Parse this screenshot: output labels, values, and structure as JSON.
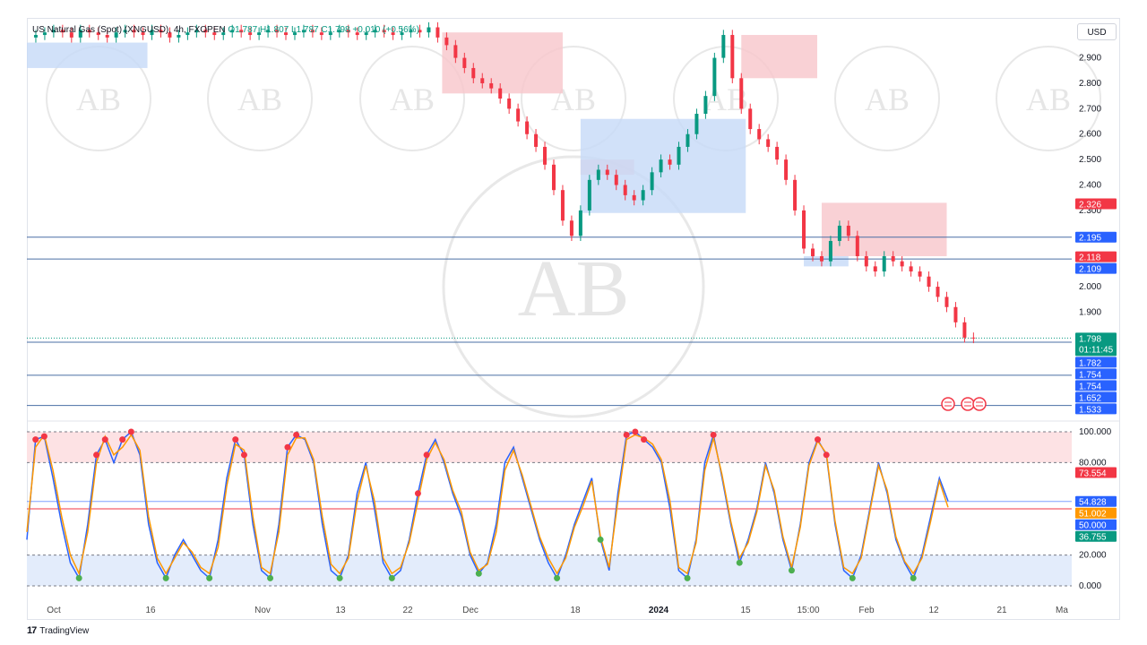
{
  "legend": {
    "symbol": "US Natural Gas (Spot) (XNGUSD), 4h, FXOPEN",
    "ohlc": "O1.787  H1.807  L1.787  C1.798  +0.010 (+0.56%)"
  },
  "currency": "USD",
  "brand": "TradingView",
  "watermark_letters": "AB",
  "colors": {
    "up": "#089981",
    "down": "#f23645",
    "supply_zone": "#f7c6cb",
    "demand_zone": "#c5d9f7",
    "level_line": "#2962ff",
    "stoch_k": "#2962ff",
    "stoch_d": "#ff9800",
    "ob_zone": "#fde2e4",
    "os_zone": "#e3ecfb",
    "midline": "#f23645"
  },
  "chart_data": [
    {
      "type": "line",
      "title": "",
      "series": [
        {
          "name": "",
          "x": [
            0,
            10,
            20,
            30,
            40,
            50,
            60,
            70,
            80,
            90,
            100,
            110,
            120,
            130,
            140,
            150,
            160,
            170,
            180,
            190,
            200,
            210,
            220,
            230,
            240,
            250,
            260,
            270,
            280,
            290,
            300,
            310,
            320,
            330,
            340,
            350,
            360,
            370,
            380,
            390,
            400,
            410,
            420,
            430,
            440,
            450,
            460,
            470,
            480,
            490,
            500,
            510,
            520,
            530,
            540,
            550,
            560,
            570,
            580,
            590,
            600,
            610,
            620,
            630,
            640,
            650,
            660,
            670,
            680,
            690,
            700,
            710,
            720,
            730,
            740,
            750,
            760,
            770,
            780,
            790,
            800,
            810,
            820,
            830,
            840,
            850,
            860,
            870,
            880,
            890,
            900,
            910,
            920,
            930,
            940,
            950,
            960,
            970,
            980,
            990,
            1000,
            1010,
            1020,
            1030,
            1040,
            1050,
            1060
          ],
          "values": [
            2.98,
            2.99,
            3.0,
            3.01,
            3.0,
            2.98,
            3.01,
            3.0,
            2.99,
            2.98,
            3.0,
            3.01,
            3.0,
            2.99,
            3.01,
            3.0,
            2.98,
            2.99,
            3.0,
            3.01,
            3.0,
            2.99,
            3.0,
            3.01,
            3.0,
            2.99,
            3.0,
            3.01,
            3.0,
            2.99,
            3.0,
            3.01,
            3.0,
            2.99,
            3.0,
            3.01,
            3.0,
            2.99,
            3.0,
            3.01,
            3.0,
            2.99,
            3.0,
            3.01,
            3.0,
            3.02,
            2.98,
            2.95,
            2.9,
            2.86,
            2.82,
            2.8,
            2.78,
            2.74,
            2.7,
            2.65,
            2.6,
            2.55,
            2.48,
            2.38,
            2.26,
            2.2,
            2.3,
            2.42,
            2.46,
            2.44,
            2.4,
            2.36,
            2.34,
            2.38,
            2.45,
            2.5,
            2.48,
            2.55,
            2.6,
            2.68,
            2.75,
            2.9,
            2.99,
            2.82,
            2.7,
            2.62,
            2.58,
            2.55,
            2.5,
            2.42,
            2.3,
            2.15,
            2.12,
            2.1,
            2.18,
            2.24,
            2.2,
            2.12,
            2.08,
            2.06,
            2.12,
            2.1,
            2.08,
            2.06,
            2.04,
            2.0,
            1.96,
            1.92,
            1.86,
            1.8,
            1.798
          ]
        }
      ],
      "last_price": 1.798,
      "countdown": "01:11:45",
      "y_ticks": [
        "2.900",
        "2.800",
        "2.700",
        "2.600",
        "2.500",
        "2.400",
        "2.300",
        "2.000",
        "1.900"
      ],
      "ylim": [
        1.5,
        3.05
      ],
      "price_labels": [
        {
          "text": "2.326",
          "value": 2.326,
          "color": "#f23645"
        },
        {
          "text": "2.195",
          "value": 2.195,
          "color": "#2962ff"
        },
        {
          "text": "2.118",
          "value": 2.118,
          "color": "#f23645"
        },
        {
          "text": "2.109",
          "value": 2.109,
          "color": "#2962ff"
        },
        {
          "text": "1.798",
          "value": 1.798,
          "color": "#089981"
        },
        {
          "text": "1.782",
          "value": 1.782,
          "color": "#2962ff"
        },
        {
          "text": "1.754",
          "value": 1.754,
          "color": "#2962ff"
        },
        {
          "text": "1.754",
          "value": 1.754,
          "color": "#2962ff"
        },
        {
          "text": "1.652",
          "value": 1.652,
          "color": "#2962ff"
        },
        {
          "text": "1.533",
          "value": 1.533,
          "color": "#2962ff"
        }
      ],
      "horizontal_levels": [
        2.195,
        2.109,
        1.782,
        1.652,
        1.533
      ],
      "supply_zones": [
        {
          "x0": 465,
          "x1": 600,
          "y0": 3.0,
          "y1": 2.76
        },
        {
          "x0": 620,
          "x1": 680,
          "y0": 2.5,
          "y1": 2.44
        },
        {
          "x0": 800,
          "x1": 885,
          "y0": 2.99,
          "y1": 2.82
        },
        {
          "x0": 890,
          "x1": 1030,
          "y0": 2.33,
          "y1": 2.12
        }
      ],
      "demand_zones": [
        {
          "x0": 0,
          "x1": 135,
          "y0": 2.96,
          "y1": 2.86
        },
        {
          "x0": 620,
          "x1": 805,
          "y0": 2.66,
          "y1": 2.29
        },
        {
          "x0": 870,
          "x1": 920,
          "y0": 2.12,
          "y1": 2.08
        }
      ],
      "x_ticks": [
        {
          "x": 30,
          "label": "Oct"
        },
        {
          "x": 138,
          "label": "16"
        },
        {
          "x": 263,
          "label": "Nov"
        },
        {
          "x": 350,
          "label": "13"
        },
        {
          "x": 425,
          "label": "22"
        },
        {
          "x": 495,
          "label": "Dec"
        },
        {
          "x": 612,
          "label": "18"
        },
        {
          "x": 705,
          "label": "2024"
        },
        {
          "x": 802,
          "label": "15"
        },
        {
          "x": 872,
          "label": "15:00"
        },
        {
          "x": 937,
          "label": "Feb"
        },
        {
          "x": 1012,
          "label": "12"
        },
        {
          "x": 1088,
          "label": "21"
        },
        {
          "x": 1155,
          "label": "Ma"
        }
      ]
    },
    {
      "type": "line",
      "title": "",
      "y_ticks": [
        "100.000",
        "80.000",
        "20.000",
        "0.000"
      ],
      "ylim": [
        0,
        100
      ],
      "overbought": 80,
      "oversold": 20,
      "midline": 50,
      "value_labels": [
        {
          "text": "73.554",
          "value": 73.554,
          "color": "#f23645"
        },
        {
          "text": "54.828",
          "value": 54.828,
          "color": "#2962ff"
        },
        {
          "text": "51.002",
          "value": 51.002,
          "color": "#ff9800"
        },
        {
          "text": "50.000",
          "value": 50.0,
          "color": "#2962ff"
        },
        {
          "text": "36.755",
          "value": 36.755,
          "color": "#089981"
        }
      ],
      "series": [
        {
          "name": "",
          "values": [
            30,
            95,
            97,
            70,
            40,
            15,
            5,
            40,
            85,
            95,
            80,
            95,
            100,
            85,
            40,
            15,
            5,
            20,
            30,
            20,
            10,
            5,
            30,
            70,
            95,
            85,
            40,
            10,
            5,
            40,
            90,
            98,
            95,
            80,
            40,
            10,
            5,
            20,
            60,
            80,
            50,
            15,
            5,
            10,
            30,
            60,
            85,
            95,
            80,
            60,
            45,
            20,
            8,
            15,
            40,
            80,
            90,
            70,
            50,
            30,
            15,
            5,
            20,
            40,
            55,
            70,
            30,
            10,
            60,
            98,
            100,
            95,
            90,
            80,
            50,
            10,
            5,
            30,
            80,
            98,
            70,
            40,
            15,
            30,
            50,
            80,
            60,
            30,
            10,
            40,
            80,
            95,
            85,
            40,
            10,
            5,
            20,
            50,
            80,
            60,
            30,
            15,
            5,
            20,
            45,
            70,
            55
          ]
        },
        {
          "name": "",
          "values": [
            35,
            90,
            98,
            75,
            45,
            20,
            8,
            35,
            80,
            97,
            85,
            90,
            98,
            88,
            45,
            18,
            8,
            18,
            28,
            22,
            12,
            8,
            25,
            65,
            92,
            88,
            45,
            12,
            8,
            35,
            85,
            96,
            96,
            82,
            45,
            14,
            8,
            18,
            55,
            78,
            55,
            18,
            8,
            12,
            28,
            55,
            82,
            93,
            82,
            62,
            48,
            22,
            10,
            14,
            35,
            75,
            88,
            72,
            52,
            32,
            18,
            8,
            18,
            38,
            52,
            68,
            32,
            12,
            55,
            95,
            98,
            96,
            92,
            82,
            55,
            12,
            8,
            28,
            75,
            96,
            72,
            42,
            18,
            28,
            48,
            78,
            62,
            32,
            12,
            38,
            78,
            94,
            86,
            42,
            12,
            8,
            18,
            48,
            78,
            62,
            32,
            16,
            8,
            18,
            42,
            68,
            51
          ]
        }
      ],
      "overbought_marks": [
        1,
        2,
        8,
        9,
        11,
        12,
        24,
        25,
        30,
        31,
        45,
        46,
        69,
        70,
        71,
        79,
        91,
        92
      ],
      "oversold_marks": [
        6,
        16,
        21,
        28,
        36,
        42,
        52,
        61,
        66,
        76,
        82,
        88,
        95,
        102
      ]
    }
  ]
}
